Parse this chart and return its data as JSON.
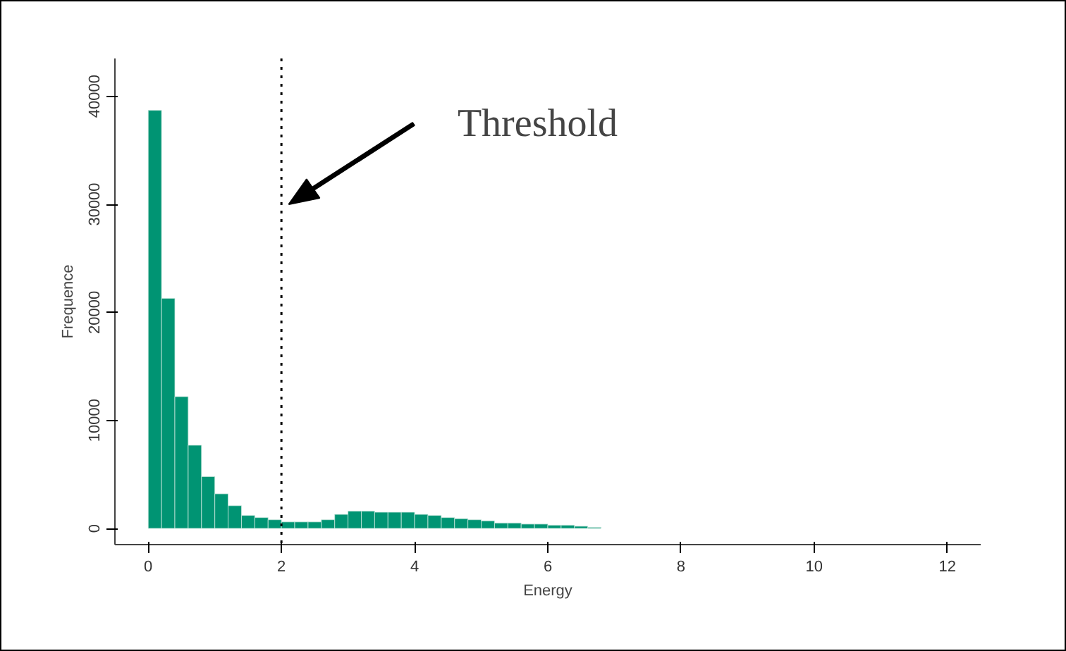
{
  "chart_data": {
    "type": "histogram",
    "xlabel": "Energy",
    "ylabel": "Frequence",
    "color": "#009473",
    "bins": [
      0,
      0.2,
      0.4,
      0.6,
      0.8,
      1.0,
      1.2,
      1.4,
      1.6,
      1.8,
      2.0,
      2.2,
      2.4,
      2.6,
      2.8,
      3.0,
      3.2,
      3.4,
      3.6,
      3.8,
      4.0,
      4.2,
      4.4,
      4.6,
      4.8,
      5.0,
      5.2,
      5.4,
      5.6,
      5.8,
      6.0,
      6.2,
      6.4,
      6.6,
      6.8
    ],
    "values": [
      38700,
      21300,
      12200,
      7700,
      4800,
      3200,
      2100,
      1200,
      1000,
      800,
      600,
      600,
      600,
      800,
      1300,
      1600,
      1600,
      1500,
      1500,
      1500,
      1300,
      1200,
      1000,
      900,
      800,
      700,
      500,
      500,
      400,
      400,
      300,
      300,
      200,
      100
    ],
    "xlim": [
      -0.5,
      12.5
    ],
    "ylim": [
      -1500,
      43500
    ],
    "xticks": [
      0,
      2,
      4,
      6,
      8,
      10,
      12
    ],
    "yticks": [
      0,
      10000,
      20000,
      30000,
      40000
    ],
    "grid": false,
    "ref_lines": [
      {
        "axis": "x",
        "value": 2,
        "line_style": "dotted",
        "color": "#000000"
      }
    ],
    "annotations": [
      "Threshold"
    ]
  }
}
